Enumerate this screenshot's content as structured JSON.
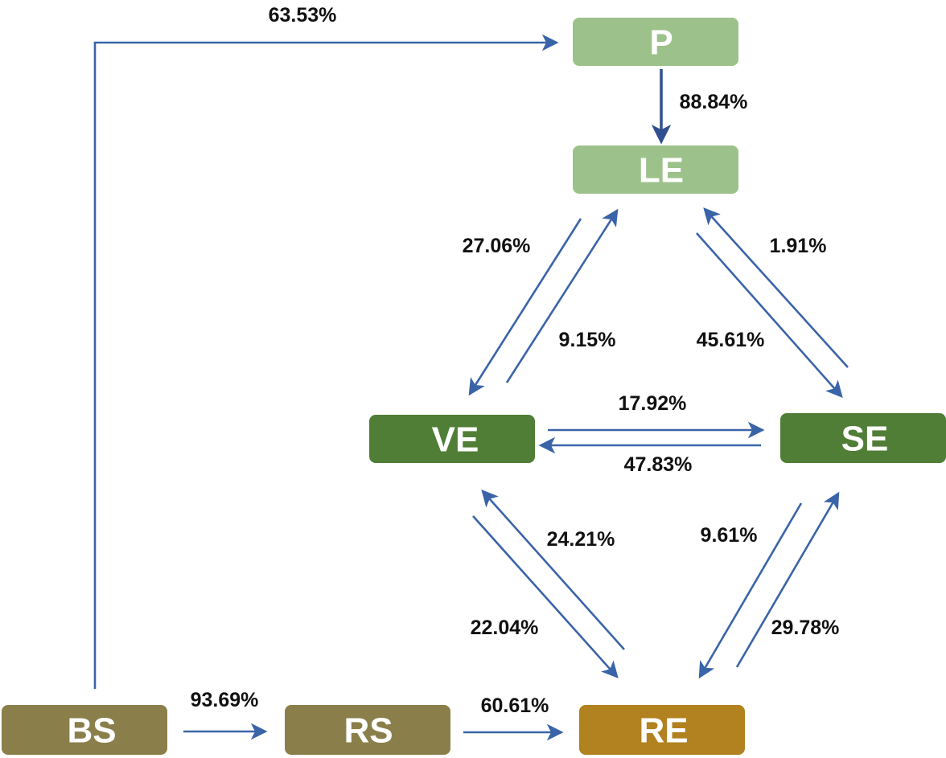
{
  "colors": {
    "light_green": "#9dc18a",
    "dark_green": "#507e36",
    "olive": "#8a7f4a",
    "gold": "#b1821f",
    "arrow": "#3a64a8",
    "arrow_dark": "#2f4f8f"
  },
  "nodes": {
    "P": "P",
    "LE": "LE",
    "VE": "VE",
    "SE": "SE",
    "BS": "BS",
    "RS": "RS",
    "RE": "RE"
  },
  "edges": {
    "bs_p": "63.53%",
    "p_le": "88.84%",
    "le_ve": "27.06%",
    "ve_le": "9.15%",
    "se_le": "1.91%",
    "le_se": "45.61%",
    "ve_se": "17.92%",
    "se_ve": "47.83%",
    "re_ve": "24.21%",
    "ve_re": "22.04%",
    "se_re": "9.61%",
    "re_se": "29.78%",
    "bs_rs": "93.69%",
    "rs_re": "60.61%"
  }
}
